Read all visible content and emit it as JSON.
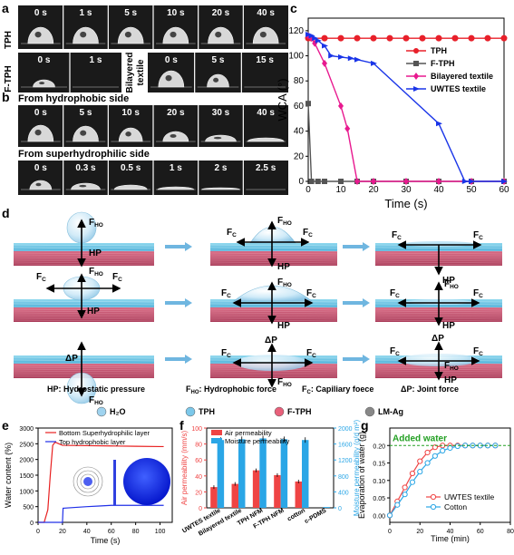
{
  "panels": {
    "a": {
      "letter": "a",
      "row_tph_label": "TPH",
      "row_ftph_label": "F-TPH",
      "tph_times": [
        "0 s",
        "1 s",
        "5 s",
        "10 s",
        "20 s",
        "40 s"
      ],
      "ftph_times": [
        "0 s",
        "1 s"
      ],
      "bilayer_label_line1": "Bilayered",
      "bilayer_label_line2": "textile",
      "bilayer_times": [
        "0 s",
        "5 s",
        "15 s"
      ]
    },
    "b": {
      "letter": "b",
      "title_top": "From hydrophobic side",
      "times_top": [
        "0 s",
        "5 s",
        "10 s",
        "20 s",
        "30 s",
        "40 s"
      ],
      "title_bottom": "From superhydrophilic side",
      "times_bottom": [
        "0 s",
        "0.3 s",
        "0.5 s",
        "1 s",
        "2 s",
        "2.5 s"
      ]
    },
    "c": {
      "letter": "c"
    },
    "d": {
      "letter": "d",
      "force_labels": {
        "hp": "HP",
        "dp": "ΔP"
      },
      "force_bases": {
        "ho": "F",
        "ho_sub": "HO",
        "c": "F",
        "c_sub": "C"
      },
      "legend_line1": [
        "HP: Hydrostatic pressure",
        "F",
        "HO",
        ": Hydrophobic force",
        "F",
        "C",
        ": Capiliary foece",
        "ΔP: Joint force"
      ],
      "legend_line2": [
        "H₂O",
        "TPH",
        "F-TPH",
        "LM-Ag"
      ],
      "legend_colors": [
        "#9fd3ef",
        "#7cc8ea",
        "#e8607a",
        "#888888"
      ]
    },
    "e": {
      "letter": "e"
    },
    "f": {
      "letter": "f"
    },
    "g": {
      "letter": "g",
      "annotation": "Added water"
    }
  },
  "chart_data": [
    {
      "id": "c",
      "type": "line",
      "xlabel": "Time (s)",
      "ylabel": "WCA (°)",
      "xlim": [
        0,
        60
      ],
      "ylim": [
        0,
        130
      ],
      "xticks": [
        0,
        10,
        20,
        30,
        40,
        50,
        60
      ],
      "yticks": [
        0,
        20,
        40,
        60,
        80,
        100,
        120
      ],
      "legend_position": "right",
      "series": [
        {
          "name": "TPH",
          "color": "#e8202a",
          "marker": "circle",
          "x": [
            0,
            1,
            5,
            10,
            15,
            20,
            25,
            30,
            35,
            40,
            45,
            50,
            55,
            60
          ],
          "y": [
            114,
            114,
            114,
            114,
            114,
            114,
            114,
            114,
            114,
            114,
            114,
            114,
            114,
            114
          ]
        },
        {
          "name": "F-TPH",
          "color": "#555555",
          "marker": "square",
          "x": [
            0,
            1,
            3,
            5,
            10,
            15,
            20,
            30,
            40,
            50,
            60
          ],
          "y": [
            62,
            0,
            0,
            0,
            0,
            0,
            0,
            0,
            0,
            0,
            0
          ]
        },
        {
          "name": "Bilayered textile",
          "color": "#e8198f",
          "marker": "diamond",
          "x": [
            0,
            1,
            2,
            5,
            10,
            12,
            15,
            20,
            30,
            40,
            50,
            60
          ],
          "y": [
            116,
            114,
            110,
            94,
            60,
            42,
            0,
            0,
            0,
            0,
            0,
            0
          ]
        },
        {
          "name": "UWTES textile",
          "color": "#1a35e8",
          "marker": "triangle",
          "x": [
            0,
            1,
            2,
            3,
            5,
            7,
            10,
            13,
            15,
            20,
            40,
            48,
            50,
            60
          ],
          "y": [
            117,
            116,
            114,
            112,
            108,
            100,
            99,
            98,
            97,
            94,
            46,
            0,
            0,
            0
          ]
        }
      ]
    },
    {
      "id": "e",
      "type": "line",
      "xlabel": "Time (s)",
      "ylabel": "Water content (%)",
      "xlim": [
        0,
        110
      ],
      "ylim": [
        0,
        3000
      ],
      "xticks": [
        0,
        20,
        40,
        60,
        80,
        100
      ],
      "yticks": [
        0,
        500,
        1000,
        1500,
        2000,
        2500,
        3000
      ],
      "legend_position": "top",
      "series": [
        {
          "name": "Bottom Superhydrophilic layer",
          "color": "#e82020",
          "x": [
            0,
            5,
            8,
            10,
            12,
            14,
            17,
            20,
            40,
            60,
            80,
            100,
            103
          ],
          "y": [
            0,
            0,
            400,
            1500,
            2450,
            2550,
            2500,
            2450,
            2440,
            2430,
            2420,
            2410,
            2410
          ]
        },
        {
          "name": "Top hydrophobic layer",
          "color": "#2030e8",
          "x": [
            0,
            20,
            20.5,
            40,
            50,
            60,
            80,
            100,
            103
          ],
          "y": [
            0,
            0,
            450,
            500,
            520,
            540,
            540,
            540,
            540
          ]
        }
      ]
    },
    {
      "id": "f",
      "type": "bar",
      "categories": [
        "UWTES textile",
        "Bilayered textile",
        "TPH NFM",
        "F-TPH NFM",
        "cotton",
        "c-PDMS"
      ],
      "ylabel_left": "Air permeability (mm/s)",
      "ylabel_right": "Moisture permeability (g/d m²)",
      "ylim_left": [
        0,
        100
      ],
      "ylim_right": [
        0,
        2000
      ],
      "yticks_left": [
        0,
        20,
        40,
        60,
        80,
        100
      ],
      "yticks_right": [
        0,
        400,
        800,
        1200,
        1600,
        2000
      ],
      "legend_position": "top-left",
      "series": [
        {
          "name": "Air permeability",
          "color": "#ef4444",
          "axis": "left",
          "values": [
            26,
            30,
            47,
            41,
            33,
            0
          ]
        },
        {
          "name": "Moisture permeability",
          "color": "#2aa6e6",
          "axis": "right",
          "values": [
            1700,
            1720,
            1740,
            1720,
            1700,
            20
          ]
        }
      ]
    },
    {
      "id": "g",
      "type": "line",
      "xlabel": "Time (min)",
      "ylabel": "Evaporation of water (g)",
      "xlim": [
        0,
        80
      ],
      "ylim": [
        -0.02,
        0.25
      ],
      "xticks": [
        0,
        20,
        40,
        60,
        80
      ],
      "yticks": [
        0.0,
        0.05,
        0.1,
        0.15,
        0.2
      ],
      "legend_position": "bottom-right",
      "series": [
        {
          "name": "UWTES textile",
          "color": "#ef4444",
          "marker": "circle",
          "x": [
            0,
            5,
            10,
            15,
            20,
            25,
            30,
            35,
            40,
            45,
            50,
            55,
            60,
            65,
            70
          ],
          "y": [
            0.0,
            0.04,
            0.08,
            0.12,
            0.155,
            0.18,
            0.195,
            0.2,
            0.2,
            0.2,
            0.2,
            0.2,
            0.2,
            0.2,
            0.2
          ]
        },
        {
          "name": "Cotton",
          "color": "#2aa6e6",
          "marker": "circle",
          "x": [
            0,
            5,
            10,
            15,
            20,
            25,
            30,
            35,
            40,
            45,
            50,
            55,
            60,
            65,
            70
          ],
          "y": [
            0.0,
            0.03,
            0.06,
            0.095,
            0.125,
            0.15,
            0.17,
            0.185,
            0.193,
            0.198,
            0.2,
            0.2,
            0.2,
            0.2,
            0.2
          ]
        }
      ]
    }
  ]
}
